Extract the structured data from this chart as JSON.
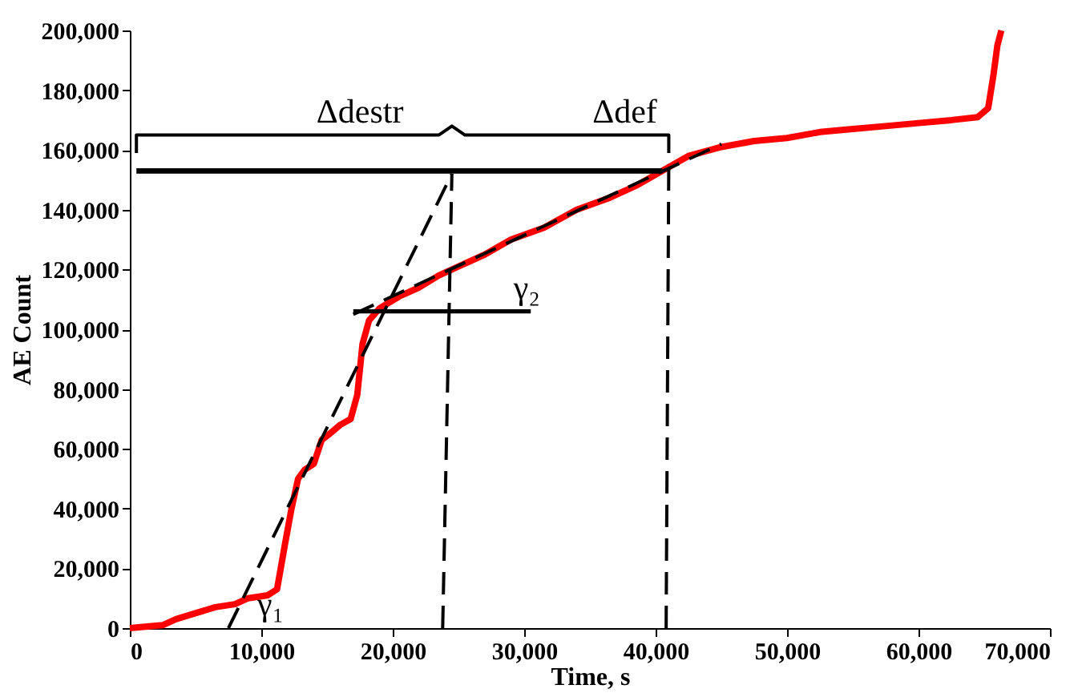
{
  "chart_data": {
    "type": "line",
    "xlabel": "Time, s",
    "ylabel": "AE Count",
    "xlim": [
      0,
      70000
    ],
    "ylim": [
      0,
      200000
    ],
    "xticks": [
      0,
      {
        "value": 10000,
        "label": "10,000"
      },
      {
        "value": 20000,
        "label": "20,000"
      },
      {
        "value": 30000,
        "label": "30,000"
      },
      {
        "value": 40000,
        "label": "40,000"
      },
      {
        "value": 50000,
        "label": "50,000"
      },
      {
        "value": 60000,
        "label": "60,000"
      },
      {
        "value": 70000,
        "label": "70,000"
      }
    ],
    "yticks": [
      0,
      {
        "value": 20000,
        "label": "20,000"
      },
      {
        "value": 40000,
        "label": "40,000"
      },
      {
        "value": 60000,
        "label": "60,000"
      },
      {
        "value": 80000,
        "label": "80,000"
      },
      {
        "value": 100000,
        "label": "100,000"
      },
      {
        "value": 120000,
        "label": "120,000"
      },
      {
        "value": 140000,
        "label": "140,000"
      },
      {
        "value": 160000,
        "label": "160,000"
      },
      {
        "value": 180000,
        "label": "180,000"
      },
      {
        "value": 200000,
        "label": "200,000"
      }
    ],
    "grid": false,
    "legend": false,
    "marker": "none",
    "series": [
      {
        "color": "#ff0000",
        "line_style": "solid",
        "x": [
          0,
          2500,
          3500,
          5000,
          6500,
          8000,
          9000,
          10500,
          11200,
          11800,
          12300,
          12800,
          13300,
          14000,
          14600,
          15200,
          16000,
          16800,
          17300,
          17700,
          18200,
          19000,
          20500,
          22000,
          23500,
          25000,
          27000,
          29000,
          31500,
          34000,
          36500,
          38500,
          40500,
          42500,
          45000,
          47500,
          50000,
          52500,
          55000,
          57500,
          60000,
          62500,
          64500,
          65300,
          65700,
          66000,
          66300
        ],
        "values": [
          0,
          1000,
          3000,
          5000,
          7000,
          8000,
          10000,
          11000,
          13000,
          28000,
          40000,
          50000,
          53000,
          55000,
          63000,
          65000,
          68000,
          70000,
          78000,
          95000,
          103000,
          107000,
          111000,
          114000,
          118000,
          121000,
          125000,
          130000,
          134000,
          140000,
          144000,
          148000,
          153000,
          158000,
          161000,
          163000,
          164000,
          166000,
          167000,
          168000,
          169000,
          170000,
          171000,
          174000,
          185000,
          195000,
          200000
        ]
      },
      {
        "color": "#000000",
        "line_style": "dashed",
        "x": [
          7500,
          24500
        ],
        "values": [
          0,
          152000
        ]
      },
      {
        "color": "#000000",
        "line_style": "dashed",
        "x": [
          17000,
          45000
        ],
        "values": [
          105000,
          162000
        ]
      },
      {
        "color": "#000000",
        "line_style": "dashed",
        "x": [
          23800,
          24500
        ],
        "values": [
          0,
          152000
        ]
      },
      {
        "color": "#000000",
        "line_style": "dashed",
        "x": [
          40800,
          41000
        ],
        "values": [
          0,
          155000
        ]
      },
      {
        "color": "#000000",
        "line_style": "solid",
        "x": [
          500,
          40500
        ],
        "values": [
          153000,
          153000
        ]
      },
      {
        "color": "#000000",
        "line_style": "solid",
        "x": [
          17000,
          30500
        ],
        "values": [
          106000,
          106000
        ]
      },
      {
        "color": "#000000",
        "line_style": "solid",
        "x": [
          500,
          500,
          23500,
          24500,
          25500,
          41000,
          41000
        ],
        "values": [
          159000,
          165000,
          165000,
          168000,
          165000,
          165000,
          159000
        ]
      }
    ],
    "annotations": [
      {
        "text": "Δdestr",
        "x": 12000,
        "y": 165000
      },
      {
        "text": "Δdef",
        "x": 33000,
        "y": 165000
      },
      {
        "text": "γ₁",
        "x": 7500,
        "y": 0
      },
      {
        "text": "γ₂",
        "x": 27000,
        "y": 106000
      }
    ]
  }
}
